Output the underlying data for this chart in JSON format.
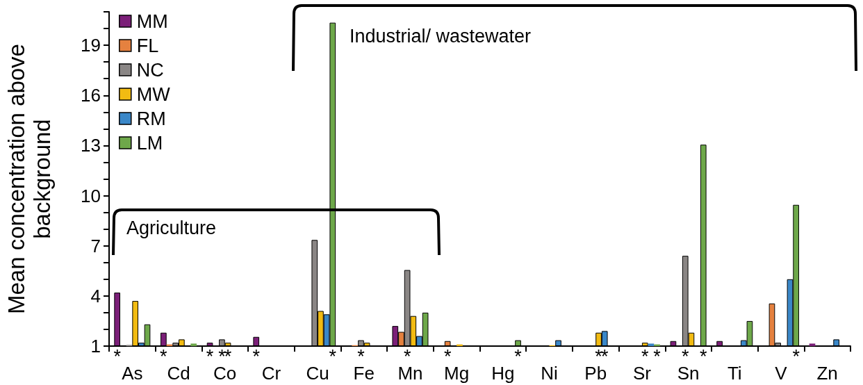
{
  "chart_data": {
    "type": "bar",
    "ylabel": "Mean concentration above background",
    "categories": [
      "As",
      "Cd",
      "Co",
      "Cr",
      "Cu",
      "Fe",
      "Mn",
      "Mg",
      "Hg",
      "Ni",
      "Pb",
      "Sr",
      "Sn",
      "Ti",
      "V",
      "Zn"
    ],
    "series": [
      {
        "name": "MM",
        "color": "#7b1f78",
        "values": [
          4.2,
          1.8,
          1.2,
          1.55,
          null,
          null,
          2.2,
          null,
          null,
          null,
          null,
          null,
          1.3,
          1.3,
          null,
          1.15
        ],
        "value_labels": [
          "*",
          "*",
          "*",
          "*",
          null,
          null,
          null,
          null,
          null,
          null,
          null,
          null,
          null,
          null,
          null,
          null
        ]
      },
      {
        "name": "FL",
        "color": "#e5813f",
        "values": [
          null,
          1.1,
          null,
          null,
          null,
          1.05,
          1.85,
          1.3,
          null,
          null,
          null,
          null,
          null,
          null,
          3.55,
          null
        ],
        "value_labels": [
          null,
          null,
          null,
          null,
          null,
          null,
          null,
          "*",
          null,
          null,
          null,
          null,
          null,
          null,
          null,
          null
        ]
      },
      {
        "name": "NC",
        "color": "#8a8685",
        "values": [
          1.07,
          1.2,
          1.4,
          null,
          7.35,
          1.35,
          5.55,
          null,
          null,
          null,
          null,
          null,
          6.4,
          null,
          1.2,
          null
        ],
        "value_labels": [
          null,
          null,
          "*",
          null,
          null,
          "*",
          "*",
          null,
          null,
          null,
          null,
          null,
          "*",
          null,
          null,
          null
        ]
      },
      {
        "name": "MW",
        "color": "#f2bb12",
        "values": [
          3.7,
          1.4,
          1.2,
          null,
          3.1,
          1.2,
          2.8,
          1.1,
          null,
          1.05,
          1.8,
          1.2,
          1.8,
          null,
          null,
          null
        ],
        "value_labels": [
          null,
          null,
          "*",
          null,
          null,
          null,
          null,
          null,
          null,
          null,
          "*",
          "*",
          null,
          null,
          null,
          null
        ]
      },
      {
        "name": "RM",
        "color": "#3a87c8",
        "values": [
          1.2,
          null,
          null,
          null,
          2.9,
          null,
          1.6,
          null,
          null,
          1.35,
          1.9,
          1.15,
          null,
          1.35,
          5.0,
          1.4
        ],
        "value_labels": [
          null,
          null,
          null,
          null,
          null,
          null,
          null,
          null,
          null,
          null,
          "*",
          null,
          null,
          null,
          null,
          null
        ]
      },
      {
        "name": "LM",
        "color": "#6ea84a",
        "values": [
          2.3,
          1.15,
          null,
          null,
          20.35,
          null,
          3.0,
          null,
          1.35,
          null,
          null,
          1.1,
          13.05,
          2.5,
          9.45,
          null
        ],
        "value_labels": [
          null,
          null,
          null,
          null,
          "*",
          null,
          null,
          null,
          "*",
          null,
          null,
          "*",
          "*",
          null,
          "*",
          null
        ]
      }
    ],
    "ylim": [
      1,
      21
    ],
    "yticks": [
      1,
      {
        "value": 2,
        "label": null
      },
      {
        "value": 3,
        "label": null
      },
      4,
      {
        "value": 5,
        "label": null
      },
      {
        "value": 6,
        "label": null
      },
      7,
      {
        "value": 8,
        "label": null
      },
      {
        "value": 9,
        "label": null
      },
      10,
      {
        "value": 11,
        "label": null
      },
      {
        "value": 12,
        "label": null
      },
      13,
      {
        "value": 14,
        "label": null
      },
      {
        "value": 15,
        "label": null
      },
      16,
      {
        "value": 17,
        "label": null
      },
      {
        "value": 18,
        "label": null
      },
      19,
      {
        "value": 20,
        "label": null
      },
      {
        "value": 21,
        "label": null
      }
    ],
    "annotations": [
      "Industrial/ wastewater",
      "Agriculture"
    ],
    "legend": "top left",
    "grid": false
  }
}
